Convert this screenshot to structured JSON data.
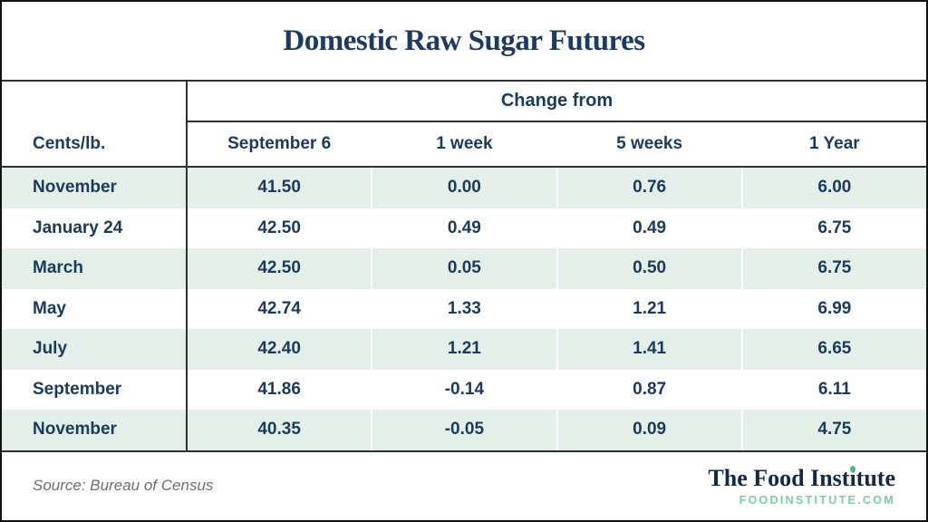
{
  "chart_data": {
    "type": "table",
    "title": "Domestic Raw Sugar Futures",
    "group_header": "Change from",
    "columns": [
      "Cents/lb.",
      "September 6",
      "1 week",
      "5 weeks",
      "1 Year"
    ],
    "rows": [
      {
        "label": "November",
        "values": [
          "41.50",
          "0.00",
          "0.76",
          "6.00"
        ]
      },
      {
        "label": "January 24",
        "values": [
          "42.50",
          "0.49",
          "0.49",
          "6.75"
        ]
      },
      {
        "label": "March",
        "values": [
          "42.50",
          "0.05",
          "0.50",
          "6.75"
        ]
      },
      {
        "label": "May",
        "values": [
          "42.74",
          "1.33",
          "1.21",
          "6.99"
        ]
      },
      {
        "label": "July",
        "values": [
          "42.40",
          "1.21",
          "1.41",
          "6.65"
        ]
      },
      {
        "label": "September",
        "values": [
          "41.86",
          "-0.14",
          "0.87",
          "6.11"
        ]
      },
      {
        "label": "November",
        "values": [
          "40.35",
          "-0.05",
          "0.09",
          "4.75"
        ]
      }
    ],
    "layout": {
      "row_stripe_colors": [
        "#e3efe8",
        "#ffffff"
      ],
      "grid": "column separators white, label column separated by dark rule"
    }
  },
  "footer": {
    "source": "Source: Bureau of Census",
    "brand": {
      "name": "The Food Institute",
      "pre": "The Food Inst",
      "i": "i",
      "post": "tute"
    },
    "brand_url": "FOODINSTITUTE.COM"
  },
  "colors": {
    "navy_text": "#1a3a5f",
    "title_navy": "#1c3a63",
    "logo_navy": "#13294b",
    "row_green": "#e3efe8",
    "brand_dot_green": "#49bd7e",
    "url_green": "#7ecda4",
    "source_gray": "#6e6e6e",
    "rule_dark": "#2f2f2f"
  }
}
